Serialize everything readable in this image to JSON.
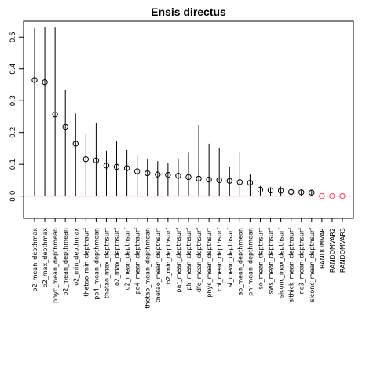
{
  "chart_data": {
    "type": "scatter",
    "title": "Ensis directus",
    "xlabel": "",
    "ylabel": "",
    "ylim": [
      -0.07,
      0.55
    ],
    "yticks": [
      "0.0",
      "0.1",
      "0.2",
      "0.3",
      "0.4",
      "0.5"
    ],
    "reference_line": {
      "y": 0,
      "color": "#ff4060"
    },
    "grid": false,
    "categories": [
      "o2_mean_depthmax",
      "o2_max_depthmax",
      "phyc_mean_depthmean",
      "o2_mean_depthmean",
      "o2_min_depthmax",
      "thetao_min_depthsurf",
      "po4_mean_depthmean",
      "thetao_max_depthsurf",
      "o2_max_depthsurf",
      "o2_mean_depthsurf",
      "po4_mean_depthsurf",
      "thetao_mean_depthmean",
      "thetao_mean_depthsurf",
      "o2_min_depthsurf",
      "par_mean_depthsurf",
      "ph_mean_depthsurf",
      "dfe_mean_depthsurf",
      "phyc_mean_depthsurf",
      "chl_mean_depthsurf",
      "si_mean_depthsurf",
      "so_mean_depthmean",
      "ph_mean_depthmean",
      "so_mean_depthsurf",
      "sws_mean_depthsurf",
      "siconc_max_depthsurf",
      "sithick_mean_depthsurf",
      "no3_mean_depthsurf",
      "siconc_mean_depthsurf",
      "RANDOMVAR",
      "RANDOMVAR2",
      "RANDOMVAR3"
    ],
    "series": [
      {
        "values": [
          0.365,
          0.358,
          0.257,
          0.218,
          0.165,
          0.116,
          0.112,
          0.096,
          0.092,
          0.088,
          0.078,
          0.072,
          0.068,
          0.067,
          0.064,
          0.06,
          0.055,
          0.052,
          0.05,
          0.048,
          0.044,
          0.042,
          0.02,
          0.018,
          0.017,
          0.013,
          0.012,
          0.011,
          0.0,
          0.0,
          0.0
        ],
        "upper": [
          0.528,
          0.532,
          0.53,
          0.335,
          0.26,
          0.196,
          0.23,
          0.143,
          0.172,
          0.145,
          0.13,
          0.118,
          0.11,
          0.105,
          0.118,
          0.137,
          0.224,
          0.165,
          0.15,
          0.092,
          0.138,
          0.068,
          0.032,
          0.028,
          0.03,
          0.022,
          0.02,
          0.02,
          0.0,
          0.0,
          0.0
        ],
        "lower": [
          0.0,
          0.0,
          0.0,
          0.0,
          0.0,
          0.0,
          0.0,
          0.0,
          0.0,
          0.0,
          0.0,
          0.0,
          0.0,
          0.0,
          0.0,
          0.0,
          0.0,
          0.0,
          0.0,
          0.0,
          0.0,
          0.0,
          0.0,
          0.0,
          0.0,
          0.0,
          0.0,
          0.0,
          0.0,
          0.0,
          0.0
        ]
      }
    ],
    "colors": {
      "point": "#000000",
      "zero_point": "#ff4060",
      "line": "#000000",
      "axis": "#000000"
    }
  }
}
